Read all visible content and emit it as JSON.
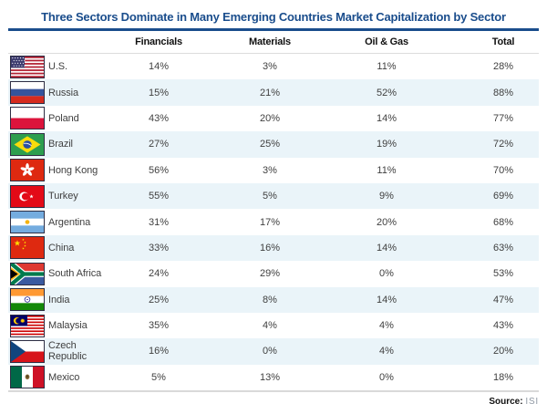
{
  "title": "Three Sectors Dominate in Many Emerging Countries Market Capitalization by Sector",
  "source": {
    "label": "Source:",
    "value": "ISI"
  },
  "colors": {
    "title_navy": "#1a4d8c",
    "rule_navy": "#1a4d8c",
    "alt_row_blue": "#eaf4f9",
    "header_rule_gray": "#dcdcdc",
    "bottom_rule_gray": "#d9d9d9",
    "text_gray": "#404040"
  },
  "chart_data": {
    "type": "table",
    "title": "Three Sectors Dominate in Many Emerging Countries Market Capitalization by Sector",
    "columns": [
      "Financials",
      "Materials",
      "Oil & Gas",
      "Total"
    ],
    "value_suffix": "%",
    "rows": [
      {
        "country": "U.S.",
        "flag": "us",
        "values": [
          14,
          3,
          11,
          28
        ]
      },
      {
        "country": "Russia",
        "flag": "russia",
        "values": [
          15,
          21,
          52,
          88
        ]
      },
      {
        "country": "Poland",
        "flag": "poland",
        "values": [
          43,
          20,
          14,
          77
        ]
      },
      {
        "country": "Brazil",
        "flag": "brazil",
        "values": [
          27,
          25,
          19,
          72
        ]
      },
      {
        "country": "Hong Kong",
        "flag": "hongkong",
        "values": [
          56,
          3,
          11,
          70
        ]
      },
      {
        "country": "Turkey",
        "flag": "turkey",
        "values": [
          55,
          5,
          9,
          69
        ]
      },
      {
        "country": "Argentina",
        "flag": "argentina",
        "values": [
          31,
          17,
          20,
          68
        ]
      },
      {
        "country": "China",
        "flag": "china",
        "values": [
          33,
          16,
          14,
          63
        ]
      },
      {
        "country": "South Africa",
        "flag": "southafrica",
        "values": [
          24,
          29,
          0,
          53
        ]
      },
      {
        "country": "India",
        "flag": "india",
        "values": [
          25,
          8,
          14,
          47
        ]
      },
      {
        "country": "Malaysia",
        "flag": "malaysia",
        "values": [
          35,
          4,
          4,
          43
        ]
      },
      {
        "country": "Czech Republic",
        "flag": "czech",
        "values": [
          16,
          0,
          4,
          20
        ]
      },
      {
        "country": "Mexico",
        "flag": "mexico",
        "values": [
          5,
          13,
          0,
          18
        ]
      }
    ],
    "legend": "none",
    "grid": "horizontal-row-stripes"
  }
}
